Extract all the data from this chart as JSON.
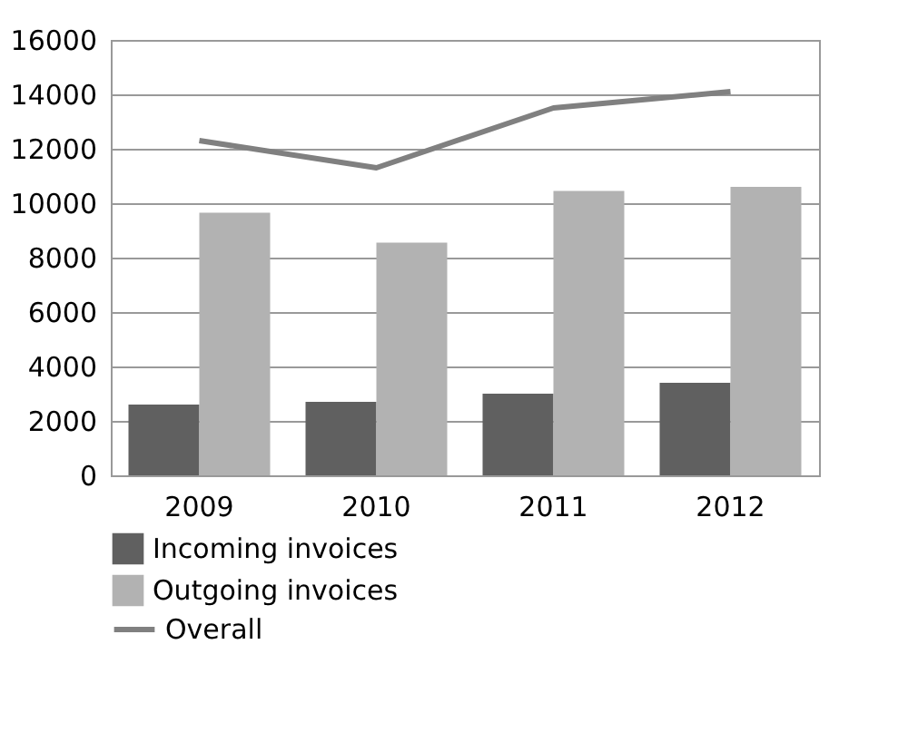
{
  "chart_data": {
    "type": "bar",
    "categories": [
      "2009",
      "2010",
      "2011",
      "2012"
    ],
    "series": [
      {
        "name": "Incoming invoices",
        "color": "#606060",
        "values": [
          2600,
          2700,
          3000,
          3400
        ]
      },
      {
        "name": "Outgoing invoices",
        "color": "#b2b2b2",
        "values": [
          9650,
          8550,
          10450,
          10600
        ]
      },
      {
        "name": "Overall",
        "type": "line",
        "color": "#808080",
        "values": [
          12300,
          11300,
          13500,
          14100
        ]
      }
    ],
    "ylim": [
      0,
      16000
    ],
    "yticks": [
      0,
      2000,
      4000,
      6000,
      8000,
      10000,
      12000,
      14000,
      16000
    ],
    "grid": "y",
    "legend": "bottom"
  }
}
